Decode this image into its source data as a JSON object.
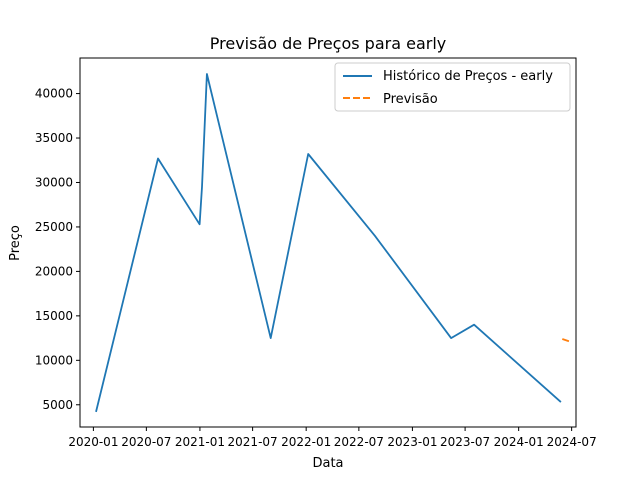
{
  "chart_data": {
    "type": "line",
    "title": "Previsão de Preços para early",
    "xlabel": "Data",
    "ylabel": "Preço",
    "x_type": "date",
    "xlim": [
      "2019-11-16",
      "2024-07-16"
    ],
    "ylim": [
      2500,
      44000
    ],
    "x_ticks": [
      "2020-01-01",
      "2020-07-01",
      "2021-01-01",
      "2021-07-01",
      "2022-01-01",
      "2022-07-01",
      "2023-01-01",
      "2023-07-01",
      "2024-01-01",
      "2024-07-01"
    ],
    "x_tick_labels": [
      "2020-01",
      "2020-07",
      "2021-01",
      "2021-07",
      "2022-01",
      "2022-07",
      "2023-01",
      "2023-07",
      "2024-01",
      "2024-07"
    ],
    "y_ticks": [
      5000,
      10000,
      15000,
      20000,
      25000,
      30000,
      35000,
      40000
    ],
    "y_tick_labels": [
      "5000",
      "10000",
      "15000",
      "20000",
      "25000",
      "30000",
      "35000",
      "40000"
    ],
    "grid": false,
    "legend_position": "top-right",
    "series": [
      {
        "name": "Histórico de Preços - early",
        "color": "#1f77b4",
        "style": "solid",
        "x": [
          "2020-01-10",
          "2020-08-10",
          "2020-12-31",
          "2021-01-08",
          "2021-01-25",
          "2021-09-01",
          "2022-01-08",
          "2022-08-25",
          "2023-05-14",
          "2023-08-01",
          "2024-05-25"
        ],
        "y": [
          4200,
          32700,
          25300,
          29500,
          42200,
          12500,
          33200,
          24000,
          12500,
          14000,
          5300
        ]
      },
      {
        "name": "Previsão",
        "color": "#ff7f0e",
        "style": "dashed",
        "x": [
          "2024-05-30",
          "2024-06-25"
        ],
        "y": [
          12400,
          12100
        ]
      }
    ]
  }
}
